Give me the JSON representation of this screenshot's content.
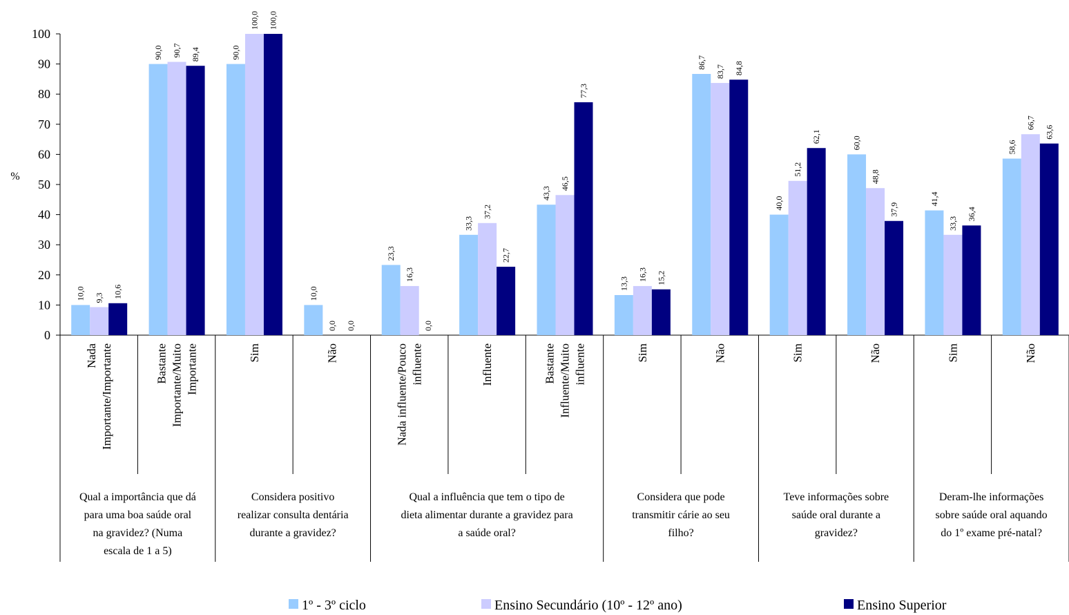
{
  "chart_data": {
    "type": "bar",
    "ylabel": "%",
    "ylim": [
      0,
      100
    ],
    "yticks": [
      "0",
      "10",
      "20",
      "30",
      "40",
      "50",
      "60",
      "70",
      "80",
      "90",
      "100"
    ],
    "grid": false,
    "legend_position": "bottom",
    "categories": [
      [
        "Nada",
        "Importante/Importante"
      ],
      [
        "Bastante",
        "Importante/Muito",
        "Importante"
      ],
      [
        "Sim"
      ],
      [
        "Não"
      ],
      [
        "Nada influente/Pouco",
        "influente"
      ],
      [
        "Influente"
      ],
      [
        "Bastante",
        "Influente/Muito",
        "influente"
      ],
      [
        "Sim"
      ],
      [
        "Não"
      ],
      [
        "Sim"
      ],
      [
        "Não"
      ],
      [
        "Sim"
      ],
      [
        "Não"
      ]
    ],
    "groups": [
      {
        "span": [
          0,
          2
        ],
        "lines": [
          "Qual a importância que dá",
          "para uma boa saúde oral",
          "na gravidez? (Numa",
          "escala de 1 a 5)"
        ]
      },
      {
        "span": [
          2,
          4
        ],
        "lines": [
          "Considera positivo",
          "realizar consulta dentária",
          "durante a gravidez?"
        ]
      },
      {
        "span": [
          4,
          7
        ],
        "lines": [
          "Qual a influência que tem o tipo de",
          "dieta alimentar durante a gravidez para",
          "a saúde oral?"
        ]
      },
      {
        "span": [
          7,
          9
        ],
        "lines": [
          "Considera que pode",
          "transmitir cárie ao seu",
          "filho?"
        ]
      },
      {
        "span": [
          9,
          11
        ],
        "lines": [
          "Teve informações sobre",
          "saúde oral durante a",
          "gravidez?"
        ]
      },
      {
        "span": [
          11,
          13
        ],
        "lines": [
          "Deram-lhe informações",
          "sobre saúde oral aquando",
          "do 1º exame pré-natal?"
        ]
      }
    ],
    "series": [
      {
        "name": "1º - 3º ciclo",
        "color": "#99CCFF",
        "values": [
          10.0,
          90.0,
          90.0,
          10.0,
          23.3,
          33.3,
          43.3,
          13.3,
          86.7,
          40.0,
          60.0,
          41.4,
          58.6
        ],
        "labels": [
          "10,0",
          "90,0",
          "90,0",
          "10,0",
          "23,3",
          "33,3",
          "43,3",
          "13,3",
          "86,7",
          "40,0",
          "60,0",
          "41,4",
          "58,6"
        ]
      },
      {
        "name": "Ensino Secundário (10º - 12º ano)",
        "color": "#CCCCFF",
        "values": [
          9.3,
          90.7,
          100.0,
          0.0,
          16.3,
          37.2,
          46.5,
          16.3,
          83.7,
          51.2,
          48.8,
          33.3,
          66.7
        ],
        "labels": [
          "9,3",
          "90,7",
          "100,0",
          "0,0",
          "16,3",
          "37,2",
          "46,5",
          "16,3",
          "83,7",
          "51,2",
          "48,8",
          "33,3",
          "66,7"
        ]
      },
      {
        "name": "Ensino Superior",
        "color": "#000080",
        "values": [
          10.6,
          89.4,
          100.0,
          0.0,
          0.0,
          22.7,
          77.3,
          15.2,
          84.8,
          62.1,
          37.9,
          36.4,
          63.6
        ],
        "labels": [
          "10,6",
          "89,4",
          "100,0",
          "0,0",
          "0,0",
          "22,7",
          "77,3",
          "15,2",
          "84,8",
          "62,1",
          "37,9",
          "36,4",
          "63,6"
        ]
      }
    ]
  }
}
